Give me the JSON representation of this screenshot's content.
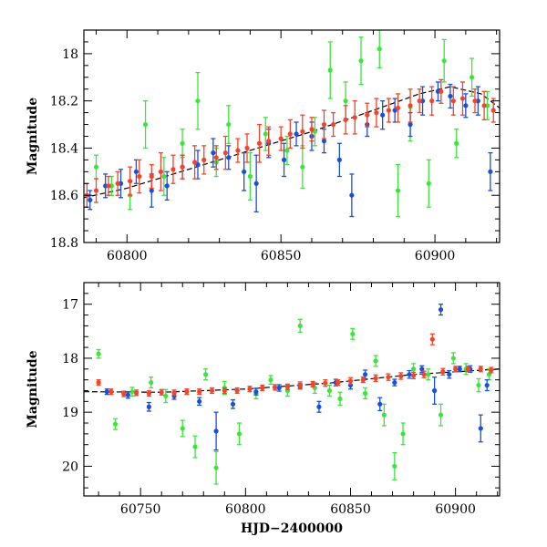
{
  "chart_data": [
    {
      "type": "scatter",
      "title": "",
      "xlabel": "",
      "ylabel": "Magnitude",
      "xlim": [
        60786,
        60921
      ],
      "ylim": [
        18.8,
        17.9
      ],
      "y_inverted": true,
      "xticks": [
        60800,
        60850,
        60900
      ],
      "xtick_labels": [
        "60800",
        "60850",
        "60900"
      ],
      "yticks": [
        18.0,
        18.2,
        18.4,
        18.6,
        18.8
      ],
      "ytick_labels": [
        "18",
        "18.2",
        "18.4",
        "18.6",
        "18.8"
      ],
      "grid": false,
      "legend": "none",
      "error_bars": true,
      "series": [
        {
          "color": "#3ee33e",
          "x": [
            60790,
            60795,
            60801,
            60806,
            60812,
            60818,
            60823,
            60829,
            60833,
            60840,
            60845,
            60852,
            60857,
            60861,
            60866,
            60871,
            60876,
            60882,
            60888,
            60892,
            60898,
            60903,
            60907,
            60912,
            60917
          ],
          "y": [
            18.48,
            18.56,
            18.6,
            18.3,
            18.52,
            18.38,
            18.2,
            18.46,
            18.3,
            18.52,
            18.34,
            18.41,
            18.48,
            18.33,
            18.07,
            18.2,
            18.03,
            17.98,
            18.58,
            18.3,
            18.55,
            18.03,
            18.38,
            18.1,
            18.22
          ],
          "err": [
            0.05,
            0.04,
            0.06,
            0.1,
            0.08,
            0.06,
            0.12,
            0.06,
            0.08,
            0.1,
            0.07,
            0.06,
            0.09,
            0.06,
            0.12,
            0.08,
            0.1,
            0.08,
            0.11,
            0.07,
            0.1,
            0.09,
            0.06,
            0.08,
            0.06
          ]
        },
        {
          "color": "#1a4fd9",
          "x": [
            60788,
            60793,
            60798,
            60803,
            60808,
            60813,
            60818,
            60823,
            60828,
            60833,
            60838,
            60842,
            60846,
            60851,
            60855,
            60860,
            60864,
            60869,
            60873,
            60878,
            60883,
            60887,
            60892,
            60896,
            60901,
            60905,
            60910,
            60914,
            60918
          ],
          "y": [
            18.62,
            18.56,
            18.55,
            18.5,
            18.58,
            18.56,
            18.48,
            18.47,
            18.42,
            18.44,
            18.5,
            18.55,
            18.38,
            18.45,
            18.34,
            18.35,
            18.37,
            18.45,
            18.6,
            18.3,
            18.26,
            18.24,
            18.3,
            18.2,
            18.16,
            18.18,
            18.22,
            18.2,
            18.5
          ],
          "err": [
            0.04,
            0.05,
            0.06,
            0.05,
            0.07,
            0.06,
            0.05,
            0.06,
            0.06,
            0.05,
            0.08,
            0.12,
            0.06,
            0.07,
            0.05,
            0.06,
            0.05,
            0.07,
            0.09,
            0.05,
            0.06,
            0.05,
            0.05,
            0.06,
            0.04,
            0.05,
            0.05,
            0.06,
            0.08
          ]
        },
        {
          "color": "#f2442a",
          "x": [
            60787,
            60790,
            60794,
            60797,
            60801,
            60804,
            60808,
            60811,
            60815,
            60818,
            60822,
            60825,
            60829,
            60832,
            60836,
            60839,
            60843,
            60846,
            60850,
            60853,
            60857,
            60860,
            60864,
            60867,
            60871,
            60874,
            60878,
            60881,
            60885,
            60888,
            60892,
            60895,
            60899,
            60902,
            60906,
            60909,
            60913,
            60916,
            60919
          ],
          "y": [
            18.6,
            18.58,
            18.56,
            18.55,
            18.54,
            18.52,
            18.52,
            18.5,
            18.49,
            18.48,
            18.46,
            18.45,
            18.44,
            18.42,
            18.41,
            18.4,
            18.38,
            18.37,
            18.36,
            18.34,
            18.33,
            18.32,
            18.3,
            18.3,
            18.28,
            18.27,
            18.26,
            18.25,
            18.24,
            18.23,
            18.22,
            18.2,
            18.2,
            18.16,
            18.2,
            18.19,
            18.2,
            18.22,
            18.24
          ],
          "err": [
            0.05,
            0.05,
            0.04,
            0.05,
            0.06,
            0.07,
            0.05,
            0.08,
            0.06,
            0.05,
            0.07,
            0.06,
            0.05,
            0.07,
            0.05,
            0.06,
            0.08,
            0.06,
            0.05,
            0.06,
            0.07,
            0.05,
            0.06,
            0.05,
            0.06,
            0.07,
            0.05,
            0.06,
            0.05,
            0.06,
            0.07,
            0.05,
            0.06,
            0.05,
            0.06,
            0.07,
            0.05,
            0.06,
            0.05
          ]
        }
      ],
      "model_curve": {
        "color": "#000000",
        "style": "dashed",
        "x": [
          60786,
          60800,
          60820,
          60840,
          60860,
          60880,
          60895,
          60905,
          60915,
          60921
        ],
        "y": [
          18.61,
          18.57,
          18.49,
          18.41,
          18.33,
          18.24,
          18.17,
          18.14,
          18.17,
          18.23
        ]
      }
    },
    {
      "type": "scatter",
      "title": "",
      "xlabel": "HJD−2400000",
      "ylabel": "Magnitude",
      "xlim": [
        60723,
        60921
      ],
      "ylim": [
        20.55,
        16.6
      ],
      "y_inverted": true,
      "xticks": [
        60750,
        60800,
        60850,
        60900
      ],
      "xtick_labels": [
        "60750",
        "60800",
        "60850",
        "60900"
      ],
      "yticks": [
        17,
        18,
        19,
        20
      ],
      "ytick_labels": [
        "17",
        "18",
        "19",
        "20"
      ],
      "grid": false,
      "legend": "none",
      "error_bars": true,
      "series": [
        {
          "color": "#3ee33e",
          "x": [
            60730,
            60738,
            60746,
            60755,
            60762,
            60770,
            60776,
            60781,
            60786,
            60790,
            60797,
            60805,
            60812,
            60820,
            60826,
            60833,
            60840,
            60845,
            60851,
            60857,
            60862,
            60866,
            60871,
            60875,
            60880,
            60887,
            60893,
            60899,
            60905,
            60911,
            60916
          ],
          "y": [
            17.92,
            19.22,
            18.62,
            18.45,
            18.7,
            19.3,
            19.64,
            18.3,
            20.03,
            18.55,
            19.4,
            18.65,
            18.4,
            18.6,
            17.4,
            18.55,
            18.6,
            18.75,
            17.55,
            18.65,
            18.05,
            19.05,
            20.0,
            19.4,
            18.2,
            18.3,
            19.05,
            18.0,
            18.2,
            18.5,
            18.3
          ],
          "err": [
            0.08,
            0.1,
            0.08,
            0.1,
            0.12,
            0.15,
            0.2,
            0.1,
            0.3,
            0.12,
            0.2,
            0.1,
            0.08,
            0.1,
            0.12,
            0.1,
            0.1,
            0.12,
            0.1,
            0.1,
            0.1,
            0.2,
            0.25,
            0.2,
            0.1,
            0.1,
            0.2,
            0.1,
            0.1,
            0.12,
            0.1
          ]
        },
        {
          "color": "#1a4fd9",
          "x": [
            60734,
            60744,
            60754,
            60766,
            60778,
            60786,
            60794,
            60805,
            60816,
            60826,
            60835,
            60843,
            60850,
            60857,
            60864,
            60871,
            60878,
            60884,
            60890,
            60893,
            60897,
            60902,
            60907,
            60912,
            60915
          ],
          "y": [
            18.62,
            18.68,
            18.9,
            18.7,
            18.8,
            19.35,
            18.85,
            18.62,
            18.55,
            18.52,
            18.9,
            18.45,
            18.5,
            18.3,
            18.85,
            18.45,
            18.3,
            18.2,
            18.6,
            17.1,
            18.3,
            18.2,
            18.2,
            19.3,
            18.5
          ],
          "err": [
            0.05,
            0.06,
            0.08,
            0.06,
            0.07,
            0.35,
            0.08,
            0.06,
            0.06,
            0.05,
            0.1,
            0.06,
            0.07,
            0.08,
            0.12,
            0.06,
            0.07,
            0.06,
            0.25,
            0.1,
            0.07,
            0.05,
            0.06,
            0.25,
            0.1
          ]
        },
        {
          "color": "#f2442a",
          "x": [
            60730,
            60736,
            60742,
            60748,
            60754,
            60760,
            60766,
            60772,
            60778,
            60784,
            60790,
            60796,
            60802,
            60808,
            60814,
            60820,
            60826,
            60832,
            60838,
            60844,
            60850,
            60856,
            60862,
            60868,
            60874,
            60880,
            60885,
            60889,
            60894,
            60900,
            60906,
            60912,
            60917
          ],
          "y": [
            18.45,
            18.62,
            18.66,
            18.64,
            18.65,
            18.63,
            18.64,
            18.62,
            18.62,
            18.6,
            18.6,
            18.6,
            18.57,
            18.55,
            18.54,
            18.53,
            18.5,
            18.48,
            18.46,
            18.45,
            18.42,
            18.4,
            18.37,
            18.35,
            18.33,
            18.32,
            18.3,
            17.65,
            18.25,
            18.2,
            18.2,
            18.2,
            18.22
          ],
          "err": [
            0.05,
            0.05,
            0.05,
            0.05,
            0.05,
            0.05,
            0.05,
            0.05,
            0.05,
            0.05,
            0.05,
            0.05,
            0.05,
            0.05,
            0.05,
            0.05,
            0.06,
            0.05,
            0.06,
            0.05,
            0.06,
            0.05,
            0.06,
            0.06,
            0.06,
            0.06,
            0.06,
            0.1,
            0.06,
            0.05,
            0.05,
            0.05,
            0.05
          ]
        }
      ],
      "model_curve": {
        "color": "#000000",
        "style": "dashed",
        "x": [
          60723,
          60760,
          60800,
          60840,
          60880,
          60921
        ],
        "y": [
          18.62,
          18.63,
          18.57,
          18.46,
          18.3,
          18.2
        ]
      }
    }
  ]
}
